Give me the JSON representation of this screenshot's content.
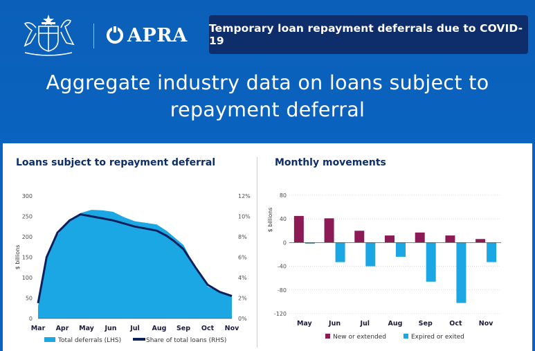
{
  "header": {
    "logo_text": "APRA",
    "banner": "Temporary loan repayment deferrals due to COVID-19",
    "headline_line1": "Aggregate industry data on loans subject to",
    "headline_line2": "repayment deferral"
  },
  "colors": {
    "header_blue": "#0a63c0",
    "banner_navy": "#0d2d6b",
    "area_blue": "#1aa7e4",
    "line_navy": "#0d1f5c",
    "bar_maroon": "#8b1a55",
    "bar_cyan": "#1aa7e4"
  },
  "chart_data": [
    {
      "type": "area",
      "title": "Loans subject to repayment deferral",
      "ylabel": "$ billions",
      "ylim": [
        0,
        300
      ],
      "yticks": [
        "0",
        "50",
        "100",
        "150",
        "200",
        "250",
        "300"
      ],
      "y2lim": [
        0,
        12
      ],
      "y2ticks": [
        "0%",
        "2%",
        "4%",
        "6%",
        "8%",
        "10%",
        "12%"
      ],
      "x": [
        "Mar",
        "Apr",
        "May",
        "Jun",
        "Jul",
        "Aug",
        "Sep",
        "Oct",
        "Nov"
      ],
      "area_points": [
        [
          0,
          30
        ],
        [
          0.35,
          150
        ],
        [
          0.8,
          205
        ],
        [
          1.3,
          240
        ],
        [
          1.75,
          258
        ],
        [
          2.2,
          266
        ],
        [
          2.65,
          265
        ],
        [
          3.1,
          261
        ],
        [
          3.55,
          248
        ],
        [
          4,
          238
        ],
        [
          4.45,
          234
        ],
        [
          4.9,
          230
        ],
        [
          5.3,
          215
        ],
        [
          5.6,
          200
        ],
        [
          6,
          180
        ],
        [
          6.5,
          125
        ],
        [
          7,
          78
        ],
        [
          7.5,
          65
        ],
        [
          8,
          55
        ]
      ],
      "line_points": [
        [
          0,
          1.5
        ],
        [
          0.35,
          6.0
        ],
        [
          0.8,
          8.4
        ],
        [
          1.3,
          9.6
        ],
        [
          1.75,
          10.2
        ],
        [
          2.2,
          10.0
        ],
        [
          2.65,
          9.8
        ],
        [
          3.1,
          9.6
        ],
        [
          3.55,
          9.3
        ],
        [
          4,
          9.0
        ],
        [
          4.45,
          8.8
        ],
        [
          4.9,
          8.6
        ],
        [
          5.3,
          8.1
        ],
        [
          5.6,
          7.6
        ],
        [
          6,
          6.8
        ],
        [
          6.5,
          5.0
        ],
        [
          7,
          3.3
        ],
        [
          7.5,
          2.6
        ],
        [
          8,
          2.2
        ]
      ],
      "series": [
        {
          "name": "Total deferrals (LHS)"
        },
        {
          "name": "Share of total loans (RHS)"
        }
      ]
    },
    {
      "type": "bar",
      "title": "Monthly movements",
      "ylabel": "$ billions",
      "ylim": [
        -120,
        80
      ],
      "yticks": [
        "80",
        "40",
        "0",
        "-40",
        "-80",
        "-120"
      ],
      "categories": [
        "May",
        "Jun",
        "Jul",
        "Aug",
        "Sep",
        "Oct",
        "Nov"
      ],
      "series": [
        {
          "name": "New or extended",
          "values": [
            45,
            41,
            20,
            12,
            17,
            12,
            6
          ]
        },
        {
          "name": "Expired or exited",
          "values": [
            -2,
            -33,
            -40,
            -24,
            -66,
            -102,
            -33
          ]
        }
      ]
    }
  ]
}
